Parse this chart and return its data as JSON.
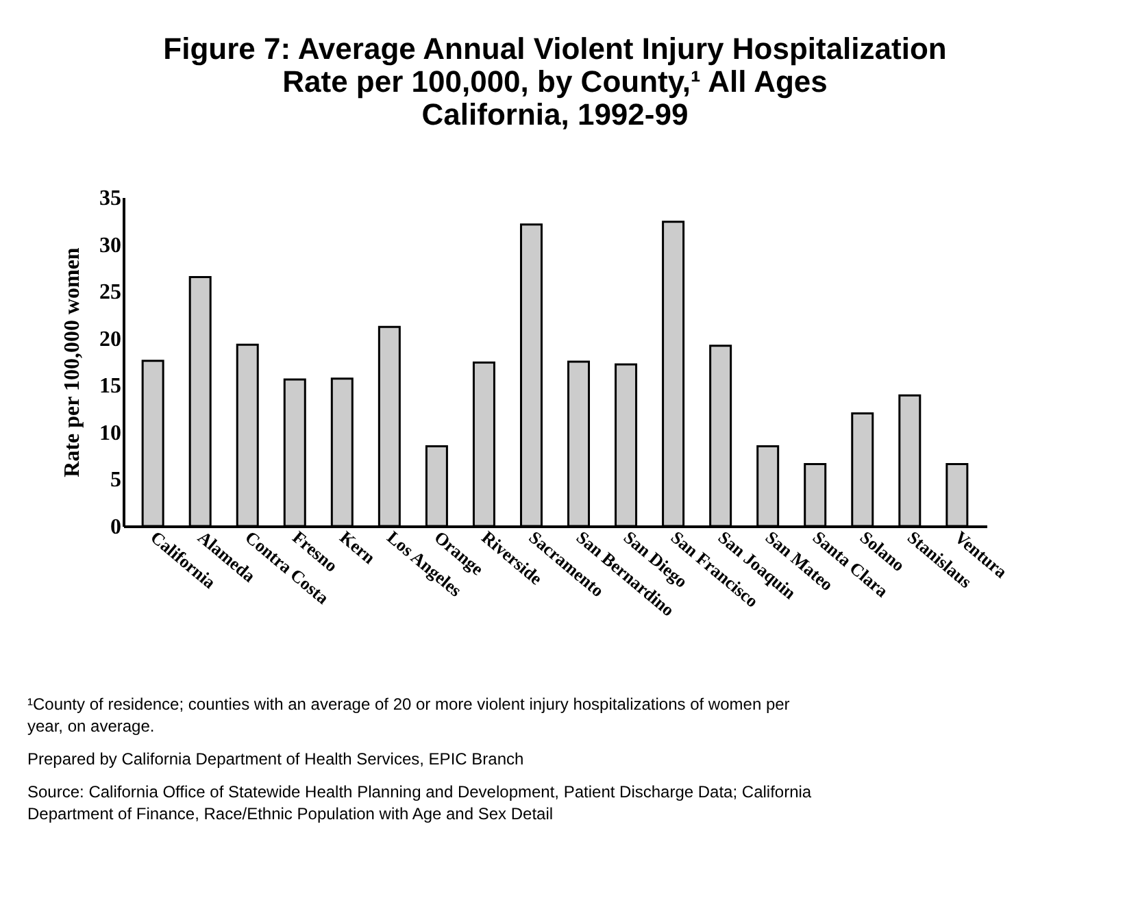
{
  "chart_data": {
    "type": "bar",
    "title": [
      "Figure 7: Average Annual Violent Injury Hospitalization",
      "Rate per 100,000, by County,¹ All Ages",
      "California, 1992-99"
    ],
    "ylabel": "Rate per 100,000 women",
    "categories": [
      "California",
      "Alameda",
      "Contra Costa",
      "Fresno",
      "Kern",
      "Los Angeles",
      "Orange",
      "Riverside",
      "Sacramento",
      "San Bernardino",
      "San Diego",
      "San Francisco",
      "San Joaquin",
      "San Mateo",
      "Santa Clara",
      "Solano",
      "Stanislaus",
      "Ventura"
    ],
    "values": [
      17.6,
      26.5,
      19.3,
      15.6,
      15.7,
      21.2,
      8.5,
      17.4,
      32.1,
      17.5,
      17.2,
      32.4,
      19.2,
      8.5,
      6.6,
      12.0,
      13.9,
      6.6
    ],
    "color": "#cccccc",
    "ylim": [
      0,
      35
    ],
    "yticks": [
      0,
      5,
      10,
      15,
      20,
      25,
      30,
      35
    ],
    "annotations": [
      "¹County of residence; counties with an average of 20 or more violent injury hospitalizations of women per year, on average.",
      "Prepared by California Department of Health Services, EPIC Branch",
      "Source: California Office of Statewide Health Planning and Development, Patient Discharge Data; California Department of Finance, Race/Ethnic Population with Age and Sex Detail"
    ]
  }
}
